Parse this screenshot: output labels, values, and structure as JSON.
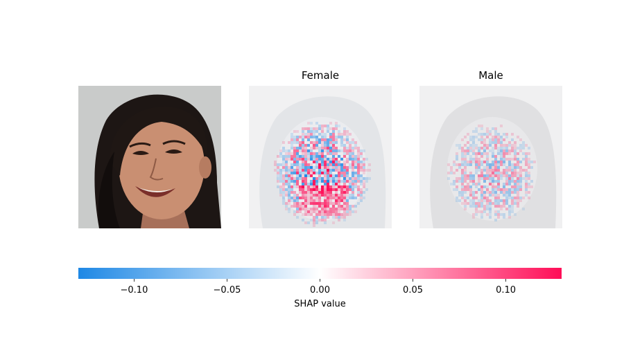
{
  "chart_data": {
    "type": "heatmap",
    "title": "",
    "panels": [
      {
        "name": "input-image",
        "label": ""
      },
      {
        "name": "shap-female",
        "label": "Female"
      },
      {
        "name": "shap-male",
        "label": "Male"
      }
    ],
    "colorbar": {
      "label": "SHAP value",
      "vmin": -0.13,
      "vmax": 0.13,
      "ticks": [
        -0.1,
        -0.05,
        0.0,
        0.05,
        0.1
      ],
      "tick_labels": [
        "−0.10",
        "−0.05",
        "0.00",
        "0.05",
        "0.10"
      ],
      "colors": {
        "negative": "#1e88e5",
        "zero": "#ffffff",
        "positive": "#ff0d57"
      }
    }
  }
}
